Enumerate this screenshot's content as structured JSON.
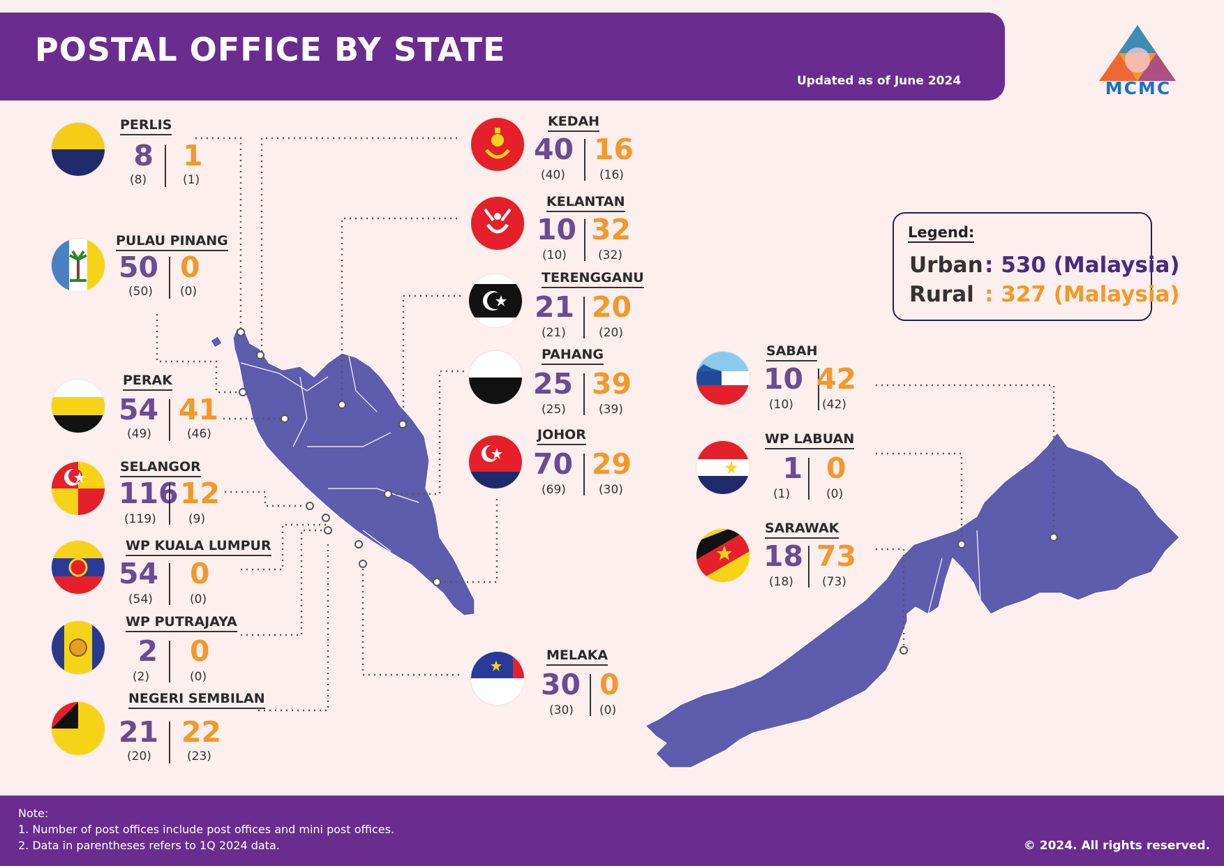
{
  "header": {
    "title": "POSTAL OFFICE BY STATE",
    "updated": "Updated as of June 2024",
    "logo_text": "MCMC"
  },
  "colors": {
    "purple": "#6a2c8f",
    "urban": "#6b4b92",
    "rural": "#f3982a",
    "map": "#5e5cad",
    "background": "#fcefed"
  },
  "legend": {
    "title": "Legend:",
    "urban_label": "Urban",
    "urban_value": ": 530 (Malaysia)",
    "rural_label": "Rural",
    "rural_value": ": 327 (Malaysia)"
  },
  "states": [
    {
      "name": "PERLIS",
      "urban": "8",
      "rural": "1",
      "urban_prev": "(8)",
      "rural_prev": "(1)",
      "flag_icon": "perlis-flag-icon"
    },
    {
      "name": "PULAU PINANG",
      "urban": "50",
      "rural": "0",
      "urban_prev": "(50)",
      "rural_prev": "(0)",
      "flag_icon": "pulau-pinang-flag-icon"
    },
    {
      "name": "PERAK",
      "urban": "54",
      "rural": "41",
      "urban_prev": "(49)",
      "rural_prev": "(46)",
      "flag_icon": "perak-flag-icon"
    },
    {
      "name": "SELANGOR",
      "urban": "116",
      "rural": "12",
      "urban_prev": "(119)",
      "rural_prev": "(9)",
      "flag_icon": "selangor-flag-icon"
    },
    {
      "name": "WP KUALA LUMPUR",
      "urban": "54",
      "rural": "0",
      "urban_prev": "(54)",
      "rural_prev": "(0)",
      "flag_icon": "kuala-lumpur-flag-icon"
    },
    {
      "name": "WP PUTRAJAYA",
      "urban": "2",
      "rural": "0",
      "urban_prev": "(2)",
      "rural_prev": "(0)",
      "flag_icon": "putrajaya-flag-icon"
    },
    {
      "name": "NEGERI SEMBILAN",
      "urban": "21",
      "rural": "22",
      "urban_prev": "(20)",
      "rural_prev": "(23)",
      "flag_icon": "negeri-sembilan-flag-icon"
    },
    {
      "name": "KEDAH",
      "urban": "40",
      "rural": "16",
      "urban_prev": "(40)",
      "rural_prev": "(16)",
      "flag_icon": "kedah-flag-icon"
    },
    {
      "name": "KELANTAN",
      "urban": "10",
      "rural": "32",
      "urban_prev": "(10)",
      "rural_prev": "(32)",
      "flag_icon": "kelantan-flag-icon"
    },
    {
      "name": "TERENGGANU",
      "urban": "21",
      "rural": "20",
      "urban_prev": "(21)",
      "rural_prev": "(20)",
      "flag_icon": "terengganu-flag-icon"
    },
    {
      "name": "PAHANG",
      "urban": "25",
      "rural": "39",
      "urban_prev": "(25)",
      "rural_prev": "(39)",
      "flag_icon": "pahang-flag-icon"
    },
    {
      "name": "JOHOR",
      "urban": "70",
      "rural": "29",
      "urban_prev": "(69)",
      "rural_prev": "(30)",
      "flag_icon": "johor-flag-icon"
    },
    {
      "name": "MELAKA",
      "urban": "30",
      "rural": "0",
      "urban_prev": "(30)",
      "rural_prev": "(0)",
      "flag_icon": "melaka-flag-icon"
    },
    {
      "name": "SABAH",
      "urban": "10",
      "rural": "42",
      "urban_prev": "(10)",
      "rural_prev": "(42)",
      "flag_icon": "sabah-flag-icon"
    },
    {
      "name": "WP LABUAN",
      "urban": "1",
      "rural": "0",
      "urban_prev": "(1)",
      "rural_prev": "(0)",
      "flag_icon": "labuan-flag-icon"
    },
    {
      "name": "SARAWAK",
      "urban": "18",
      "rural": "73",
      "urban_prev": "(18)",
      "rural_prev": "(73)",
      "flag_icon": "sarawak-flag-icon"
    }
  ],
  "footer": {
    "note_title": "Note:",
    "note_1": "1.  Number of post offices include post offices and mini post offices.",
    "note_2": "2.  Data in parentheses refers to 1Q 2024 data.",
    "copyright": "© 2024. All rights reserved."
  }
}
